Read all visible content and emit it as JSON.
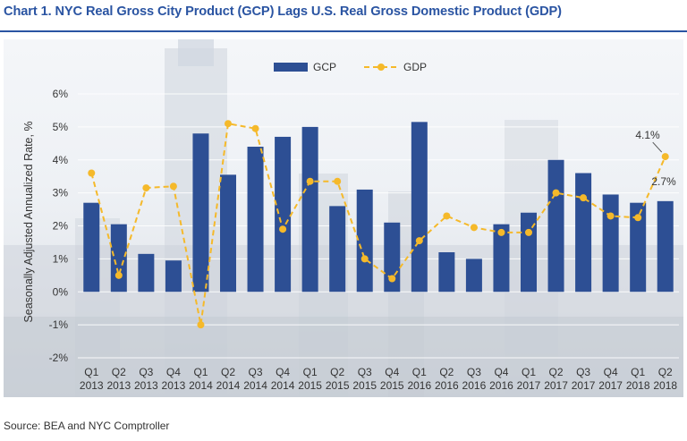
{
  "title": "Chart 1. NYC Real Gross City Product (GCP) Lags U.S. Real Gross Domestic Product (GDP)",
  "source": "Source: BEA and NYC Comptroller",
  "colors": {
    "title": "#2a54a2",
    "gcp_bar": "#2d4f94",
    "gdp_line": "#f5b92a",
    "text": "#333333"
  },
  "chart_data": {
    "type": "bar",
    "ylabel": "Seasonally Adjusted Annualized Rate, %",
    "xlabel": "",
    "ylim": [
      -2,
      6
    ],
    "yticks": [
      "-2%",
      "-1%",
      "0%",
      "1%",
      "2%",
      "3%",
      "4%",
      "5%",
      "6%"
    ],
    "grid": true,
    "legend_position": "top-center",
    "categories": [
      [
        "Q1",
        "2013"
      ],
      [
        "Q2",
        "2013"
      ],
      [
        "Q3",
        "2013"
      ],
      [
        "Q4",
        "2013"
      ],
      [
        "Q1",
        "2014"
      ],
      [
        "Q2",
        "2014"
      ],
      [
        "Q3",
        "2014"
      ],
      [
        "Q4",
        "2014"
      ],
      [
        "Q1",
        "2015"
      ],
      [
        "Q2",
        "2015"
      ],
      [
        "Q3",
        "2015"
      ],
      [
        "Q4",
        "2015"
      ],
      [
        "Q1",
        "2016"
      ],
      [
        "Q2",
        "2016"
      ],
      [
        "Q3",
        "2016"
      ],
      [
        "Q4",
        "2016"
      ],
      [
        "Q1",
        "2017"
      ],
      [
        "Q2",
        "2017"
      ],
      [
        "Q3",
        "2017"
      ],
      [
        "Q4",
        "2017"
      ],
      [
        "Q1",
        "2018"
      ],
      [
        "Q2",
        "2018"
      ]
    ],
    "series": [
      {
        "name": "GCP",
        "type": "bar",
        "values": [
          2.7,
          2.05,
          1.15,
          0.95,
          4.8,
          3.55,
          4.4,
          4.7,
          5.0,
          2.6,
          3.1,
          2.1,
          5.15,
          1.2,
          1.0,
          2.05,
          2.4,
          4.0,
          3.6,
          2.95,
          2.7,
          2.75
        ]
      },
      {
        "name": "GDP",
        "type": "line",
        "values": [
          3.6,
          0.5,
          3.15,
          3.2,
          -1.0,
          5.1,
          4.95,
          1.9,
          3.35,
          3.35,
          1.0,
          0.4,
          1.55,
          2.3,
          1.95,
          1.8,
          1.8,
          3.0,
          2.85,
          2.3,
          2.25,
          4.1
        ]
      }
    ],
    "annotations": [
      {
        "text": "4.1%",
        "series": "GDP",
        "index": 21
      },
      {
        "text": "2.7%",
        "series": "GCP",
        "index": 21
      }
    ]
  }
}
